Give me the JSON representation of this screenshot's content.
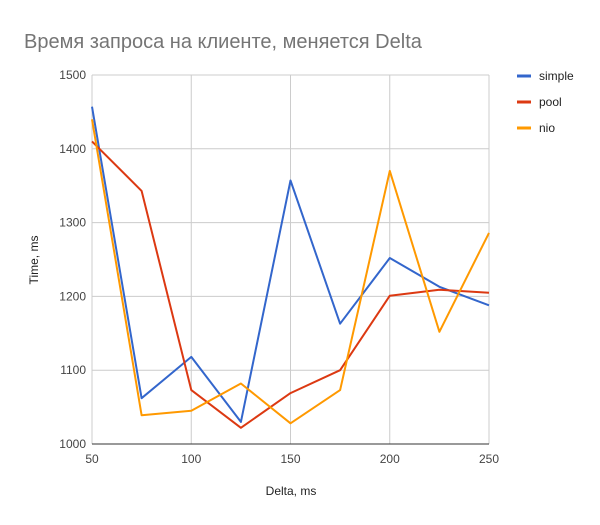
{
  "chart_data": {
    "type": "line",
    "title": "Время запроса на клиенте, меняется Delta",
    "xlabel": "Delta, ms",
    "ylabel": "Time, ms",
    "x": [
      50,
      75,
      100,
      125,
      150,
      175,
      200,
      225,
      250
    ],
    "xlim": [
      50,
      250
    ],
    "ylim": [
      1000,
      1500
    ],
    "xticks": [
      50,
      100,
      150,
      200,
      250
    ],
    "yticks": [
      1000,
      1100,
      1200,
      1300,
      1400,
      1500
    ],
    "grid": true,
    "legend_position": "right",
    "series": [
      {
        "name": "simple",
        "color": "#3366cc",
        "values": [
          1457,
          1062,
          1118,
          1030,
          1357,
          1163,
          1252,
          1213,
          1188
        ]
      },
      {
        "name": "pool",
        "color": "#dc3912",
        "values": [
          1410,
          1343,
          1073,
          1022,
          1069,
          1100,
          1201,
          1209,
          1205
        ]
      },
      {
        "name": "nio",
        "color": "#ff9900",
        "values": [
          1440,
          1039,
          1045,
          1082,
          1028,
          1073,
          1370,
          1152,
          1286
        ]
      }
    ]
  }
}
